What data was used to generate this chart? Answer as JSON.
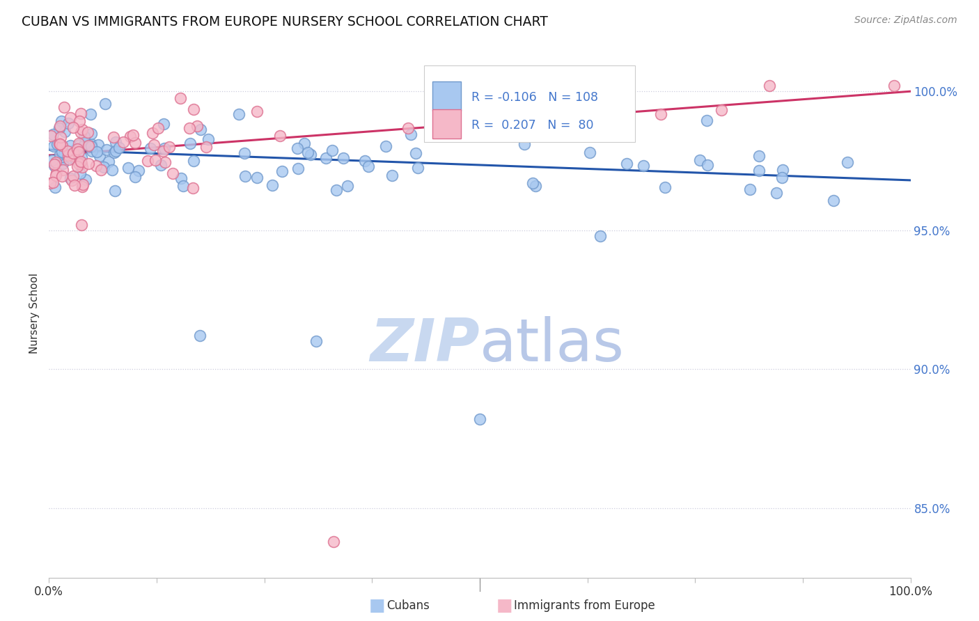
{
  "title": "CUBAN VS IMMIGRANTS FROM EUROPE NURSERY SCHOOL CORRELATION CHART",
  "source": "Source: ZipAtlas.com",
  "ylabel": "Nursery School",
  "legend_cubans": "Cubans",
  "legend_europe": "Immigrants from Europe",
  "R_cubans": -0.106,
  "N_cubans": 108,
  "R_europe": 0.207,
  "N_europe": 80,
  "color_cubans_face": "#a8c8f0",
  "color_cubans_edge": "#7099cc",
  "color_europe_face": "#f5b8c8",
  "color_europe_edge": "#dd7090",
  "color_trend_cubans": "#2255aa",
  "color_trend_europe": "#cc3366",
  "color_right_axis": "#4477cc",
  "color_grid": "#ccccdd",
  "ytick_labels": [
    "85.0%",
    "90.0%",
    "95.0%",
    "100.0%"
  ],
  "ytick_values": [
    0.85,
    0.9,
    0.95,
    1.0
  ],
  "background_color": "#ffffff",
  "watermark_color_zip": "#c8d8f0",
  "watermark_color_atlas": "#b8c8e8",
  "xlim": [
    0.0,
    1.0
  ],
  "ylim": [
    0.825,
    1.015
  ],
  "trend_blue_y0": 0.979,
  "trend_blue_y1": 0.968,
  "trend_pink_y0": 0.977,
  "trend_pink_y1": 1.0
}
